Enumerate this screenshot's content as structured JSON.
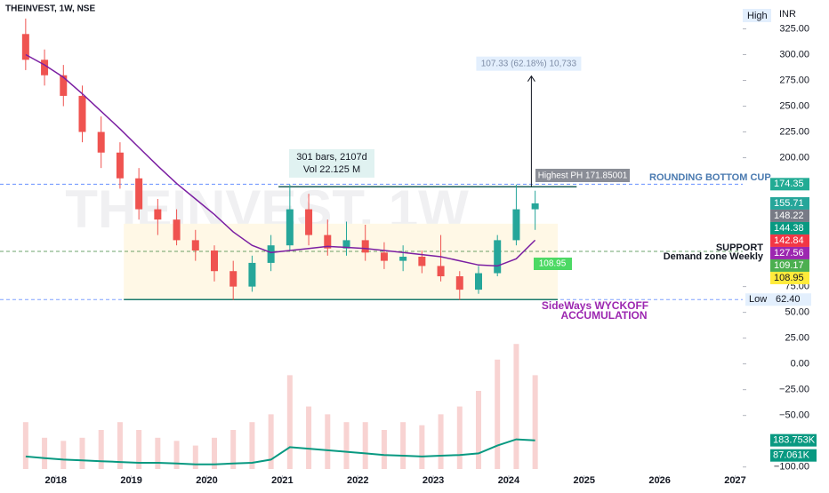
{
  "chart_data": {
    "type": "candlestick",
    "title": "THEINVEST, 1W, NSE",
    "watermark": "THEINVEST, 1W",
    "currency": "INR",
    "high_label": "High",
    "low_label": "Low",
    "x": [
      2017.6,
      2017.85,
      2018.1,
      2018.35,
      2018.6,
      2018.85,
      2019.1,
      2019.35,
      2019.6,
      2019.85,
      2020.1,
      2020.35,
      2020.6,
      2020.85,
      2021.1,
      2021.35,
      2021.6,
      2021.85,
      2022.1,
      2022.35,
      2022.6,
      2022.85,
      2023.1,
      2023.35,
      2023.6,
      2023.85,
      2024.1,
      2024.35
    ],
    "open": [
      320,
      295,
      280,
      260,
      225,
      205,
      180,
      150,
      140,
      120,
      110,
      90,
      75,
      98,
      115,
      150,
      125,
      112,
      120,
      108,
      100,
      104,
      95,
      85,
      72,
      88,
      120,
      150
    ],
    "high": [
      335,
      305,
      290,
      270,
      240,
      215,
      190,
      160,
      150,
      130,
      115,
      100,
      105,
      125,
      174,
      165,
      140,
      138,
      135,
      118,
      115,
      110,
      125,
      90,
      95,
      125,
      174,
      168
    ],
    "low": [
      285,
      270,
      250,
      215,
      190,
      170,
      140,
      125,
      115,
      100,
      80,
      62,
      70,
      90,
      110,
      115,
      105,
      105,
      100,
      92,
      90,
      88,
      80,
      62,
      68,
      85,
      115,
      130
    ],
    "close": [
      295,
      280,
      260,
      225,
      205,
      180,
      150,
      140,
      120,
      110,
      90,
      75,
      98,
      115,
      150,
      125,
      112,
      120,
      108,
      100,
      104,
      95,
      85,
      72,
      88,
      120,
      150,
      155.71
    ],
    "up_color": "#26a69a",
    "down_color": "#ef5350",
    "moving_average": {
      "color": "#7b1fa2",
      "values": [
        300,
        290,
        278,
        262,
        245,
        228,
        210,
        192,
        175,
        160,
        145,
        128,
        115,
        108,
        110,
        112,
        114,
        113,
        112,
        110,
        108,
        106,
        104,
        100,
        96,
        95,
        102,
        120
      ]
    },
    "volume": {
      "color": "#f4b6b4",
      "values": [
        300,
        200,
        180,
        200,
        250,
        300,
        250,
        200,
        180,
        150,
        200,
        250,
        300,
        350,
        600,
        400,
        350,
        300,
        300,
        250,
        300,
        280,
        350,
        400,
        500,
        700,
        800,
        600
      ]
    },
    "volume_ma": {
      "color": "#089981",
      "values": [
        80,
        70,
        60,
        55,
        50,
        45,
        40,
        40,
        35,
        30,
        30,
        35,
        40,
        60,
        140,
        130,
        120,
        110,
        100,
        90,
        85,
        80,
        85,
        90,
        100,
        150,
        190,
        183.753
      ]
    },
    "volume_lim": [
      0,
      1000
    ],
    "volume_tags": [
      {
        "value": 183.753,
        "label": "183.753K"
      },
      {
        "value": 87.061,
        "label": "87.061K"
      }
    ],
    "xlim": [
      2017.26,
      2027.1
    ],
    "xticks": [
      2018,
      2019,
      2020,
      2021,
      2022,
      2023,
      2024,
      2025,
      2026,
      2027
    ],
    "ylim": [
      -108,
      353
    ],
    "yticks": [
      {
        "value": 325,
        "label": "325.00"
      },
      {
        "value": 300,
        "label": "300.00"
      },
      {
        "value": 275,
        "label": "275.00"
      },
      {
        "value": 250,
        "label": "250.00"
      },
      {
        "value": 225,
        "label": "225.00"
      },
      {
        "value": 200,
        "label": "200.00"
      },
      {
        "value": 75,
        "label": "75.00"
      },
      {
        "value": 50,
        "label": "50.00"
      },
      {
        "value": 25,
        "label": "25.00"
      },
      {
        "value": 0,
        "label": "0.00"
      },
      {
        "value": -25,
        "label": "−25.00"
      },
      {
        "value": -50,
        "label": "−50.00"
      },
      {
        "value": -100,
        "label": "−100.00"
      }
    ],
    "price_tags": [
      {
        "value": 174.35,
        "color": "#22ab94",
        "line": "#2962ff"
      },
      {
        "value": 155.71,
        "color": "#26a69a"
      },
      {
        "value": 148.22,
        "color": "#787b86"
      },
      {
        "value": 144.38,
        "color": "#089981"
      },
      {
        "value": 142.84,
        "color": "#f23645"
      },
      {
        "value": 127.56,
        "color": "#9c27b0"
      },
      {
        "value": 109.17,
        "color": "#4caf50",
        "line": "#2e7d32"
      },
      {
        "value": 108.95,
        "color": "#ffeb3b"
      }
    ],
    "low_tag": {
      "value": 62.4,
      "label": "62.40"
    },
    "resistance": {
      "value": 171.85001,
      "label": "Highest PH 171.85001"
    },
    "projection": {
      "x": 2024.3,
      "change": 107.33,
      "label": "107.33 (62.18%) 10,733"
    },
    "measure": {
      "bars": "301 bars, 2107d",
      "volume": "Vol 22.125 M"
    },
    "zone": {
      "from": 62.4,
      "to": 136,
      "x": [
        2018.9,
        2024.65
      ]
    },
    "zone_tag": 108.95,
    "annotations": [
      "ROUNDING BOTTOM CUP",
      "SUPPORT",
      "Demand zone Weekly",
      "SideWays WYCKOFF",
      "ACCUMULATION"
    ]
  }
}
